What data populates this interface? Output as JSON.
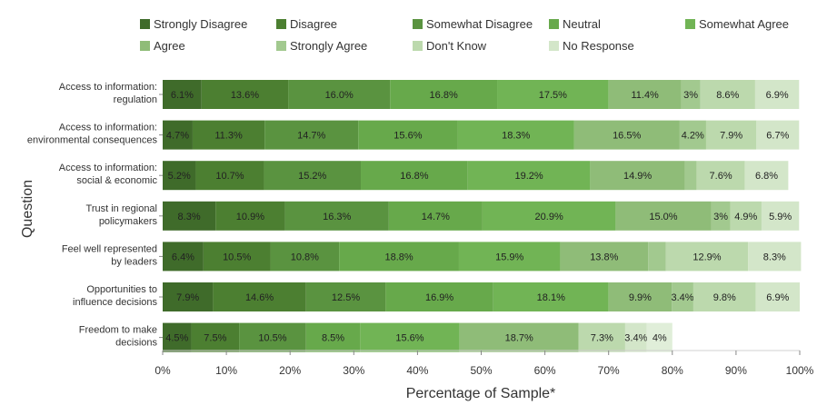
{
  "chart_data": {
    "type": "bar",
    "orientation": "horizontal",
    "stacked": true,
    "xlabel": "Percentage of Sample*",
    "ylabel": "Question",
    "xlim": [
      0,
      100
    ],
    "x_ticks": [
      "0%",
      "10%",
      "20%",
      "30%",
      "40%",
      "50%",
      "60%",
      "70%",
      "80%",
      "90%",
      "100%"
    ],
    "grid": false,
    "legend_position": "top",
    "categories": [
      [
        "Access to information:",
        "regulation"
      ],
      [
        "Access to information:",
        "environmental consequences"
      ],
      [
        "Access to information:",
        "social & economic"
      ],
      [
        "Trust in regional",
        "policymakers"
      ],
      [
        "Feel well represented",
        "by leaders"
      ],
      [
        "Opportunities to",
        "influence decisions"
      ],
      [
        "Freedom to make",
        "decisions"
      ]
    ],
    "series": [
      {
        "name": "Strongly Disagree",
        "color": "#3f6b2a",
        "values": [
          6.1,
          4.7,
          5.2,
          8.3,
          6.4,
          7.9,
          4.5
        ],
        "labels": [
          "6.1%",
          "4.7%",
          "5.2%",
          "8.3%",
          "6.4%",
          "7.9%",
          "4.5%"
        ]
      },
      {
        "name": "Disagree",
        "color": "#4c7f31",
        "values": [
          13.6,
          11.3,
          10.7,
          10.9,
          10.5,
          14.6,
          7.5
        ],
        "labels": [
          "13.6%",
          "11.3%",
          "10.7%",
          "10.9%",
          "10.5%",
          "14.6%",
          "7.5%"
        ]
      },
      {
        "name": "Somewhat Disagree",
        "color": "#5a9340",
        "values": [
          16.0,
          14.7,
          15.2,
          16.3,
          10.8,
          12.5,
          10.5
        ],
        "labels": [
          "16.0%",
          "14.7%",
          "15.2%",
          "16.3%",
          "10.8%",
          "12.5%",
          "10.5%"
        ]
      },
      {
        "name": "Neutral",
        "color": "#67a94b",
        "values": [
          16.8,
          15.6,
          16.8,
          14.7,
          18.8,
          16.9,
          8.5
        ],
        "labels": [
          "16.8%",
          "15.6%",
          "16.8%",
          "14.7%",
          "18.8%",
          "16.9%",
          "8.5%"
        ]
      },
      {
        "name": "Somewhat Agree",
        "color": "#71b455",
        "values": [
          17.5,
          18.3,
          19.2,
          20.9,
          15.9,
          18.1,
          15.6
        ],
        "labels": [
          "17.5%",
          "18.3%",
          "19.2%",
          "20.9%",
          "15.9%",
          "18.1%",
          "15.6%"
        ]
      },
      {
        "name": "Agree",
        "color": "#8fbc78",
        "values": [
          11.4,
          16.5,
          14.9,
          15.0,
          13.8,
          9.9,
          18.7
        ],
        "labels": [
          "11.4%",
          "16.5%",
          "14.9%",
          "15.0%",
          "13.8%",
          "9.9%",
          "18.7%"
        ]
      },
      {
        "name": "Strongly Agree",
        "color": "#a2c98f",
        "values": [
          3.0,
          4.2,
          1.8,
          3.0,
          2.8,
          3.4,
          0.0
        ],
        "labels": [
          "3%",
          "4.2%",
          "",
          "3%",
          "",
          "3.4%",
          ""
        ]
      },
      {
        "name": "Don't Know",
        "color": "#bcd9ad",
        "values": [
          8.6,
          7.9,
          7.6,
          4.9,
          12.9,
          9.8,
          7.3
        ],
        "labels": [
          "8.6%",
          "7.9%",
          "7.6%",
          "4.9%",
          "12.9%",
          "9.8%",
          "7.3%"
        ]
      },
      {
        "name": "No Response",
        "color": "#d3e6c9",
        "values": [
          6.9,
          6.7,
          6.8,
          5.9,
          8.3,
          6.9,
          3.4
        ],
        "labels": [
          "6.9%",
          "6.7%",
          "6.8%",
          "5.9%",
          "8.3%",
          "6.9%",
          "3.4%"
        ]
      },
      {
        "name": "",
        "color": "#e0eed9",
        "values": [
          0,
          0,
          0,
          0,
          0,
          0,
          4.0
        ],
        "labels": [
          "",
          "",
          "",
          "",
          "",
          "",
          "4%"
        ]
      }
    ]
  }
}
